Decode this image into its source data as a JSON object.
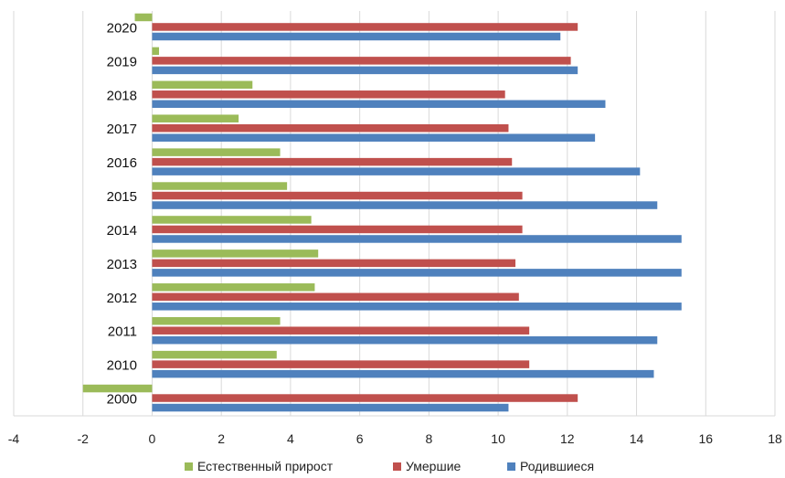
{
  "chart_data": {
    "type": "bar",
    "orientation": "horizontal",
    "categories": [
      "2020",
      "2019",
      "2018",
      "2017",
      "2016",
      "2015",
      "2014",
      "2013",
      "2012",
      "2011",
      "2010",
      "2000"
    ],
    "series": [
      {
        "name": "Естественный прирост",
        "color": "#9bbb59",
        "values": [
          -0.5,
          0.2,
          2.9,
          2.5,
          3.7,
          3.9,
          4.6,
          4.8,
          4.7,
          3.7,
          3.6,
          -2.0
        ]
      },
      {
        "name": "Умершие",
        "color": "#c0504d",
        "values": [
          12.3,
          12.1,
          10.2,
          10.3,
          10.4,
          10.7,
          10.7,
          10.5,
          10.6,
          10.9,
          10.9,
          12.3
        ]
      },
      {
        "name": "Родившиеся",
        "color": "#4f81bd",
        "values": [
          11.8,
          12.3,
          13.1,
          12.8,
          14.1,
          14.6,
          15.3,
          15.3,
          15.3,
          14.6,
          14.5,
          10.3
        ]
      }
    ],
    "xlim": [
      -4,
      18
    ],
    "xticks": [
      "-4",
      "-2",
      "0",
      "2",
      "4",
      "6",
      "8",
      "10",
      "12",
      "14",
      "16",
      "18"
    ],
    "grid": true,
    "legend_position": "bottom",
    "title": "",
    "xlabel": "",
    "ylabel": ""
  }
}
